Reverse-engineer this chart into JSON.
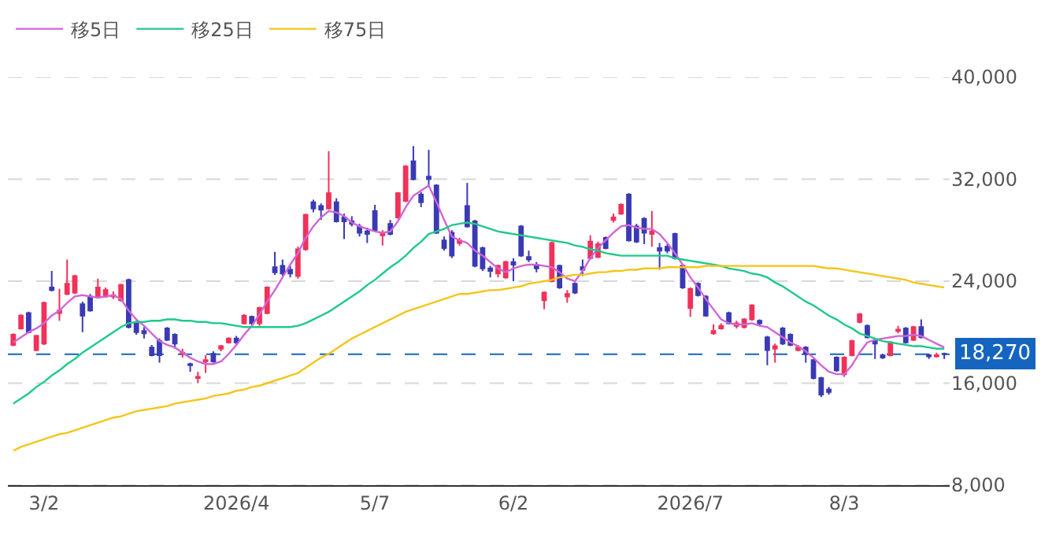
{
  "chart_data": {
    "type": "candlestick",
    "categories": [
      null,
      null,
      null,
      null,
      "3/2",
      null,
      null,
      null,
      null,
      null,
      null,
      null,
      null,
      null,
      null,
      null,
      null,
      null,
      null,
      null,
      null,
      null,
      null,
      null,
      null,
      null,
      null,
      null,
      null,
      "2026/4",
      null,
      null,
      null,
      null,
      null,
      null,
      null,
      null,
      null,
      null,
      null,
      null,
      null,
      null,
      null,
      null,
      null,
      "5/7",
      null,
      null,
      null,
      null,
      null,
      null,
      null,
      null,
      null,
      null,
      null,
      null,
      null,
      null,
      null,
      null,
      null,
      "6/2",
      null,
      null,
      null,
      null,
      null,
      null,
      null,
      null,
      null,
      null,
      null,
      null,
      null,
      null,
      null,
      null,
      null,
      null,
      null,
      null,
      null,
      null,
      "2026/7",
      null,
      null,
      null,
      null,
      null,
      null,
      null,
      null,
      null,
      null,
      null,
      null,
      null,
      null,
      null,
      null,
      null,
      null,
      null,
      "8/3",
      null,
      null,
      null,
      null,
      null,
      null,
      null,
      null,
      null,
      null,
      null,
      null,
      null
    ],
    "ohlc": [
      [
        19000,
        19900,
        18900,
        19800
      ],
      [
        20300,
        21400,
        20200,
        21300
      ],
      [
        21500,
        21600,
        19900,
        20000
      ],
      [
        18600,
        19800,
        18500,
        19700
      ],
      [
        19100,
        22400,
        19000,
        22300
      ],
      [
        23500,
        24800,
        23200,
        23300
      ],
      [
        21500,
        23400,
        20900,
        21700
      ],
      [
        23000,
        25700,
        22900,
        23800
      ],
      [
        23100,
        24500,
        23000,
        24400
      ],
      [
        22200,
        22400,
        20000,
        21300
      ],
      [
        22800,
        23000,
        21600,
        21700
      ],
      [
        22800,
        24200,
        22700,
        23500
      ],
      [
        22800,
        23500,
        22700,
        23300
      ],
      [
        22800,
        23200,
        22600,
        22900
      ],
      [
        22500,
        23800,
        22400,
        23700
      ],
      [
        24100,
        24200,
        20300,
        20400
      ],
      [
        20700,
        20900,
        19800,
        20000
      ],
      [
        20100,
        20400,
        19500,
        19900
      ],
      [
        18800,
        19000,
        18100,
        18200
      ],
      [
        19300,
        19500,
        17600,
        18200
      ],
      [
        20300,
        20400,
        19300,
        19400
      ],
      [
        19800,
        19900,
        18700,
        19100
      ],
      [
        18300,
        18700,
        18000,
        18400
      ],
      [
        17500,
        17600,
        16900,
        17400
      ],
      [
        16400,
        16900,
        16000,
        16500
      ],
      [
        17700,
        18200,
        16800,
        17800
      ],
      [
        18300,
        18500,
        17600,
        17700
      ],
      [
        18700,
        19000,
        18500,
        18900
      ],
      [
        19200,
        19600,
        19100,
        19500
      ],
      [
        19500,
        19700,
        19000,
        19200
      ],
      [
        20700,
        21400,
        20600,
        21300
      ],
      [
        21200,
        21300,
        20600,
        20700
      ],
      [
        20700,
        22000,
        20500,
        21900
      ],
      [
        21500,
        23600,
        21400,
        23500
      ],
      [
        25100,
        26300,
        24500,
        24700
      ],
      [
        25200,
        25700,
        24400,
        24600
      ],
      [
        24900,
        25200,
        24300,
        24600
      ],
      [
        24400,
        26700,
        24200,
        26500
      ],
      [
        26500,
        29300,
        26400,
        29200
      ],
      [
        30200,
        30400,
        29400,
        29700
      ],
      [
        29900,
        30100,
        28800,
        29600
      ],
      [
        29700,
        34200,
        29600,
        30900
      ],
      [
        30200,
        30500,
        28600,
        28700
      ],
      [
        29000,
        29300,
        27300,
        28700
      ],
      [
        28700,
        29100,
        28300,
        28500
      ],
      [
        28300,
        28500,
        27500,
        27800
      ],
      [
        27900,
        28200,
        27000,
        27700
      ],
      [
        29500,
        30000,
        27900,
        28000
      ],
      [
        27600,
        28000,
        26800,
        27800
      ],
      [
        28500,
        28800,
        27600,
        27700
      ],
      [
        29000,
        31000,
        28900,
        30900
      ],
      [
        30300,
        33100,
        30200,
        33000
      ],
      [
        33400,
        34600,
        31900,
        32000
      ],
      [
        30800,
        31000,
        29800,
        30200
      ],
      [
        32200,
        34300,
        31400,
        32000
      ],
      [
        31500,
        31600,
        27700,
        27800
      ],
      [
        27200,
        27500,
        26400,
        26600
      ],
      [
        27800,
        28000,
        25800,
        26000
      ],
      [
        27000,
        27400,
        26800,
        27200
      ],
      [
        29900,
        31700,
        28200,
        28300
      ],
      [
        28700,
        28800,
        25100,
        25200
      ],
      [
        26600,
        26700,
        24800,
        25000
      ],
      [
        25000,
        25200,
        24300,
        24800
      ],
      [
        24600,
        25300,
        24300,
        25200
      ],
      [
        24300,
        25600,
        24200,
        25500
      ],
      [
        25500,
        25800,
        24000,
        25300
      ],
      [
        28300,
        28400,
        25900,
        26000
      ],
      [
        25900,
        26400,
        25500,
        25700
      ],
      [
        25300,
        25500,
        24700,
        25000
      ],
      [
        22500,
        23200,
        21800,
        23100
      ],
      [
        24000,
        27100,
        23900,
        27000
      ],
      [
        25200,
        25300,
        23400,
        23500
      ],
      [
        22800,
        23300,
        22300,
        23000
      ],
      [
        23800,
        23900,
        23000,
        23100
      ],
      [
        25100,
        25700,
        24400,
        24900
      ],
      [
        25800,
        27600,
        25700,
        27100
      ],
      [
        25900,
        27100,
        25800,
        26900
      ],
      [
        27400,
        27500,
        26500,
        26600
      ],
      [
        28800,
        29300,
        28600,
        29000
      ],
      [
        29300,
        30100,
        29200,
        30000
      ],
      [
        30800,
        30900,
        27100,
        27200
      ],
      [
        28300,
        28500,
        27000,
        27100
      ],
      [
        28900,
        29000,
        26900,
        27800
      ],
      [
        27700,
        29500,
        26700,
        27900
      ],
      [
        26600,
        27000,
        24900,
        26400
      ],
      [
        26700,
        26900,
        26200,
        26400
      ],
      [
        27700,
        27800,
        25700,
        25800
      ],
      [
        25200,
        25300,
        23400,
        23500
      ],
      [
        21900,
        23500,
        21200,
        23400
      ],
      [
        23800,
        23900,
        22800,
        22900
      ],
      [
        22800,
        22900,
        21200,
        21300
      ],
      [
        19900,
        20600,
        19800,
        20100
      ],
      [
        20300,
        20700,
        20200,
        20500
      ],
      [
        21500,
        21600,
        20600,
        20700
      ],
      [
        20500,
        20900,
        20300,
        20700
      ],
      [
        20400,
        21100,
        20300,
        21000
      ],
      [
        21000,
        22200,
        20900,
        22100
      ],
      [
        20900,
        21000,
        20500,
        20700
      ],
      [
        19600,
        19700,
        17400,
        18600
      ],
      [
        18700,
        19100,
        17600,
        18900
      ],
      [
        20300,
        20400,
        19000,
        19100
      ],
      [
        19800,
        19900,
        18900,
        19000
      ],
      [
        18600,
        19000,
        18500,
        18800
      ],
      [
        18800,
        18900,
        17600,
        18300
      ],
      [
        17800,
        17900,
        16300,
        16400
      ],
      [
        16400,
        16500,
        14900,
        15100
      ],
      [
        15500,
        15700,
        15100,
        15300
      ],
      [
        18000,
        18100,
        16900,
        17000
      ],
      [
        16700,
        18100,
        16500,
        18000
      ],
      [
        18200,
        19400,
        18100,
        19300
      ],
      [
        20800,
        21500,
        20700,
        21400
      ],
      [
        20500,
        20600,
        19500,
        19600
      ],
      [
        19300,
        19500,
        17900,
        19100
      ],
      [
        18200,
        18300,
        17900,
        18000
      ],
      [
        18200,
        19300,
        18100,
        19200
      ],
      [
        20100,
        20500,
        19900,
        20200
      ],
      [
        20300,
        20400,
        19100,
        19200
      ],
      [
        19400,
        20500,
        19300,
        20400
      ],
      [
        20400,
        21000,
        19500,
        19600
      ],
      [
        18200,
        18300,
        17900,
        18100
      ],
      [
        18100,
        18400,
        18000,
        18200
      ],
      [
        18300,
        18400,
        17900,
        18270
      ]
    ],
    "colors": [
      "#f0325a",
      "#f0325a",
      "#3a3ab4",
      "#f0325a",
      "#f0325a",
      "#3a3ab4",
      "#f0325a",
      "#f0325a",
      "#f0325a",
      "#3a3ab4",
      "#3a3ab4",
      "#f0325a",
      "#f0325a",
      "#f0325a",
      "#f0325a",
      "#3a3ab4",
      "#3a3ab4",
      "#3a3ab4",
      "#3a3ab4",
      "#3a3ab4",
      "#3a3ab4",
      "#3a3ab4",
      "#f0325a",
      "#3a3ab4",
      "#f0325a",
      "#f0325a",
      "#3a3ab4",
      "#f0325a",
      "#f0325a",
      "#3a3ab4",
      "#f0325a",
      "#3a3ab4",
      "#f0325a",
      "#f0325a",
      "#3a3ab4",
      "#3a3ab4",
      "#3a3ab4",
      "#f0325a",
      "#f0325a",
      "#3a3ab4",
      "#3a3ab4",
      "#f0325a",
      "#3a3ab4",
      "#3a3ab4",
      "#3a3ab4",
      "#3a3ab4",
      "#3a3ab4",
      "#3a3ab4",
      "#f0325a",
      "#3a3ab4",
      "#f0325a",
      "#f0325a",
      "#3a3ab4",
      "#3a3ab4",
      "#3a3ab4",
      "#3a3ab4",
      "#3a3ab4",
      "#3a3ab4",
      "#f0325a",
      "#3a3ab4",
      "#3a3ab4",
      "#3a3ab4",
      "#3a3ab4",
      "#f0325a",
      "#f0325a",
      "#3a3ab4",
      "#3a3ab4",
      "#3a3ab4",
      "#3a3ab4",
      "#f0325a",
      "#f0325a",
      "#3a3ab4",
      "#f0325a",
      "#3a3ab4",
      "#3a3ab4",
      "#f0325a",
      "#f0325a",
      "#3a3ab4",
      "#f0325a",
      "#f0325a",
      "#3a3ab4",
      "#3a3ab4",
      "#3a3ab4",
      "#f0325a",
      "#3a3ab4",
      "#3a3ab4",
      "#3a3ab4",
      "#3a3ab4",
      "#f0325a",
      "#3a3ab4",
      "#3a3ab4",
      "#f0325a",
      "#f0325a",
      "#3a3ab4",
      "#f0325a",
      "#f0325a",
      "#f0325a",
      "#3a3ab4",
      "#3a3ab4",
      "#f0325a",
      "#3a3ab4",
      "#3a3ab4",
      "#f0325a",
      "#3a3ab4",
      "#3a3ab4",
      "#3a3ab4",
      "#3a3ab4",
      "#3a3ab4",
      "#f0325a",
      "#f0325a",
      "#f0325a",
      "#3a3ab4",
      "#3a3ab4",
      "#3a3ab4",
      "#f0325a",
      "#f0325a",
      "#3a3ab4",
      "#f0325a",
      "#3a3ab4",
      "#3a3ab4",
      "#f0325a",
      "#3a3ab4"
    ],
    "series": [
      {
        "name": "移5日",
        "type": "line",
        "color": "#d065d8",
        "values": [
          19200,
          19600,
          20000,
          20300,
          20700,
          21300,
          21700,
          22300,
          22800,
          22900,
          22800,
          22700,
          22800,
          22900,
          22600,
          21700,
          21000,
          20500,
          19900,
          19300,
          19000,
          18800,
          18400,
          18000,
          17700,
          17500,
          17500,
          17700,
          18300,
          19000,
          19800,
          20500,
          21400,
          22400,
          23300,
          24300,
          25300,
          26200,
          27400,
          28300,
          29000,
          29500,
          29400,
          29100,
          28600,
          28300,
          28100,
          27900,
          27800,
          27900,
          28700,
          29800,
          30700,
          31100,
          31500,
          30200,
          28800,
          27500,
          27200,
          27000,
          26400,
          26000,
          25500,
          25000,
          24700,
          25000,
          25200,
          25300,
          25300,
          25200,
          25100,
          24700,
          24200,
          24000,
          24800,
          25800,
          26600,
          27200,
          27800,
          28300,
          28400,
          28200,
          28100,
          28100,
          27700,
          27000,
          26200,
          25300,
          24300,
          23500,
          22600,
          21800,
          21000,
          20700,
          20600,
          20600,
          20700,
          20500,
          20400,
          20000,
          19600,
          19200,
          18900,
          18500,
          18000,
          17400,
          16900,
          16700,
          16700,
          17400,
          18400,
          19200,
          19400,
          19500,
          19600,
          19700,
          19700,
          19800,
          19700,
          19400,
          19100,
          18800
        ]
      },
      {
        "name": "移25日",
        "type": "line",
        "color": "#1fc98a",
        "values": [
          14400,
          14800,
          15200,
          15700,
          16100,
          16600,
          17000,
          17500,
          17900,
          18400,
          18800,
          19200,
          19600,
          20000,
          20400,
          20700,
          20800,
          20800,
          20900,
          20900,
          21000,
          21000,
          20900,
          20900,
          20800,
          20800,
          20700,
          20700,
          20600,
          20500,
          20400,
          20400,
          20400,
          20400,
          20400,
          20400,
          20400,
          20500,
          20700,
          21000,
          21300,
          21600,
          22000,
          22400,
          22800,
          23200,
          23700,
          24100,
          24600,
          25100,
          25500,
          26000,
          26600,
          27100,
          27700,
          27900,
          28100,
          28400,
          28500,
          28600,
          28500,
          28300,
          28100,
          27900,
          27800,
          27700,
          27600,
          27500,
          27400,
          27300,
          27200,
          27100,
          27000,
          26800,
          26700,
          26500,
          26400,
          26200,
          26100,
          26000,
          26000,
          26000,
          26000,
          26000,
          26000,
          26000,
          25800,
          25700,
          25600,
          25500,
          25400,
          25300,
          25200,
          25000,
          24900,
          24800,
          24600,
          24500,
          24300,
          23900,
          23600,
          23200,
          22800,
          22400,
          22100,
          21700,
          21300,
          21000,
          20600,
          20300,
          19900,
          19700,
          19500,
          19300,
          19200,
          19100,
          19000,
          18900,
          18900,
          18800,
          18700,
          18700
        ]
      },
      {
        "name": "移75日",
        "type": "line",
        "color": "#f5c518",
        "values": [
          10700,
          11000,
          11200,
          11400,
          11600,
          11800,
          12000,
          12100,
          12300,
          12500,
          12700,
          12900,
          13100,
          13300,
          13400,
          13600,
          13800,
          13900,
          14000,
          14100,
          14200,
          14400,
          14500,
          14600,
          14700,
          14800,
          15000,
          15100,
          15200,
          15400,
          15500,
          15700,
          15800,
          16000,
          16200,
          16400,
          16600,
          16800,
          17200,
          17600,
          18000,
          18300,
          18700,
          19100,
          19500,
          19800,
          20100,
          20400,
          20700,
          21000,
          21300,
          21600,
          21800,
          22000,
          22200,
          22400,
          22600,
          22800,
          23000,
          23000,
          23100,
          23200,
          23300,
          23300,
          23400,
          23500,
          23600,
          23800,
          23900,
          24000,
          24100,
          24300,
          24400,
          24500,
          24500,
          24600,
          24700,
          24700,
          24800,
          24800,
          24900,
          24900,
          25000,
          25000,
          25000,
          25100,
          25100,
          25100,
          25100,
          25100,
          25200,
          25200,
          25200,
          25200,
          25200,
          25200,
          25200,
          25200,
          25200,
          25200,
          25200,
          25200,
          25200,
          25200,
          25200,
          25100,
          25000,
          25000,
          24900,
          24800,
          24700,
          24600,
          24500,
          24400,
          24300,
          24200,
          24100,
          23900,
          23800,
          23700,
          23600,
          23500
        ]
      }
    ],
    "ylim": [
      8000,
      40000
    ],
    "yticks": [
      {
        "value": 8000,
        "label": "8,000"
      },
      {
        "value": 16000,
        "label": "16,000"
      },
      {
        "value": 24000,
        "label": "24,000"
      },
      {
        "value": 32000,
        "label": "32,000"
      },
      {
        "value": 40000,
        "label": "40,000"
      }
    ],
    "ref_lines": [
      {
        "axis": "y",
        "value": 18270,
        "label": "18,270",
        "color": "#1565c0",
        "line_style": "dashed"
      }
    ],
    "grid": "y",
    "legend": "top left"
  }
}
